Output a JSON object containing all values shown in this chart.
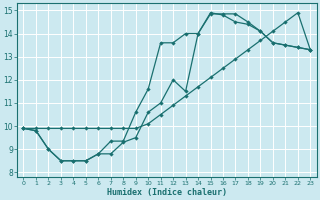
{
  "xlabel": "Humidex (Indice chaleur)",
  "xlim": [
    -0.5,
    23.5
  ],
  "ylim": [
    7.8,
    15.3
  ],
  "xticks": [
    0,
    1,
    2,
    3,
    4,
    5,
    6,
    7,
    8,
    9,
    10,
    11,
    12,
    13,
    14,
    15,
    16,
    17,
    18,
    19,
    20,
    21,
    22,
    23
  ],
  "yticks": [
    8,
    9,
    10,
    11,
    12,
    13,
    14,
    15
  ],
  "bg_color": "#cce9f0",
  "grid_color": "#ffffff",
  "line_color": "#1a7070",
  "line1_x": [
    0,
    1,
    2,
    3,
    4,
    5,
    6,
    7,
    8,
    9,
    10,
    11,
    12,
    13,
    14,
    15,
    16,
    17,
    18,
    19,
    20,
    21,
    22,
    23
  ],
  "line1_y": [
    9.9,
    9.9,
    9.9,
    9.9,
    9.9,
    9.9,
    9.9,
    9.9,
    9.9,
    9.9,
    10.1,
    10.5,
    10.9,
    11.3,
    11.7,
    12.1,
    12.5,
    12.9,
    13.3,
    13.7,
    14.1,
    14.5,
    14.9,
    13.3
  ],
  "line2_x": [
    0,
    1,
    2,
    3,
    4,
    5,
    6,
    7,
    8,
    9,
    10,
    11,
    12,
    13,
    14,
    15,
    16,
    17,
    18,
    19,
    20,
    21,
    22,
    23
  ],
  "line2_y": [
    9.9,
    9.8,
    9.0,
    8.5,
    8.5,
    8.5,
    8.8,
    9.35,
    9.35,
    10.6,
    11.6,
    13.6,
    13.6,
    14.0,
    14.0,
    14.9,
    14.8,
    14.5,
    14.4,
    14.1,
    13.6,
    13.5,
    13.4,
    13.3
  ],
  "line3_x": [
    0,
    1,
    2,
    3,
    4,
    5,
    6,
    7,
    8,
    9,
    10,
    11,
    12,
    13,
    14,
    15,
    16,
    17,
    18,
    19,
    20,
    21,
    22,
    23
  ],
  "line3_y": [
    9.9,
    9.8,
    9.0,
    8.5,
    8.5,
    8.5,
    8.8,
    8.8,
    9.3,
    9.5,
    10.6,
    11.0,
    12.0,
    11.5,
    14.0,
    14.85,
    14.85,
    14.85,
    14.5,
    14.1,
    13.6,
    13.5,
    13.4,
    13.3
  ]
}
